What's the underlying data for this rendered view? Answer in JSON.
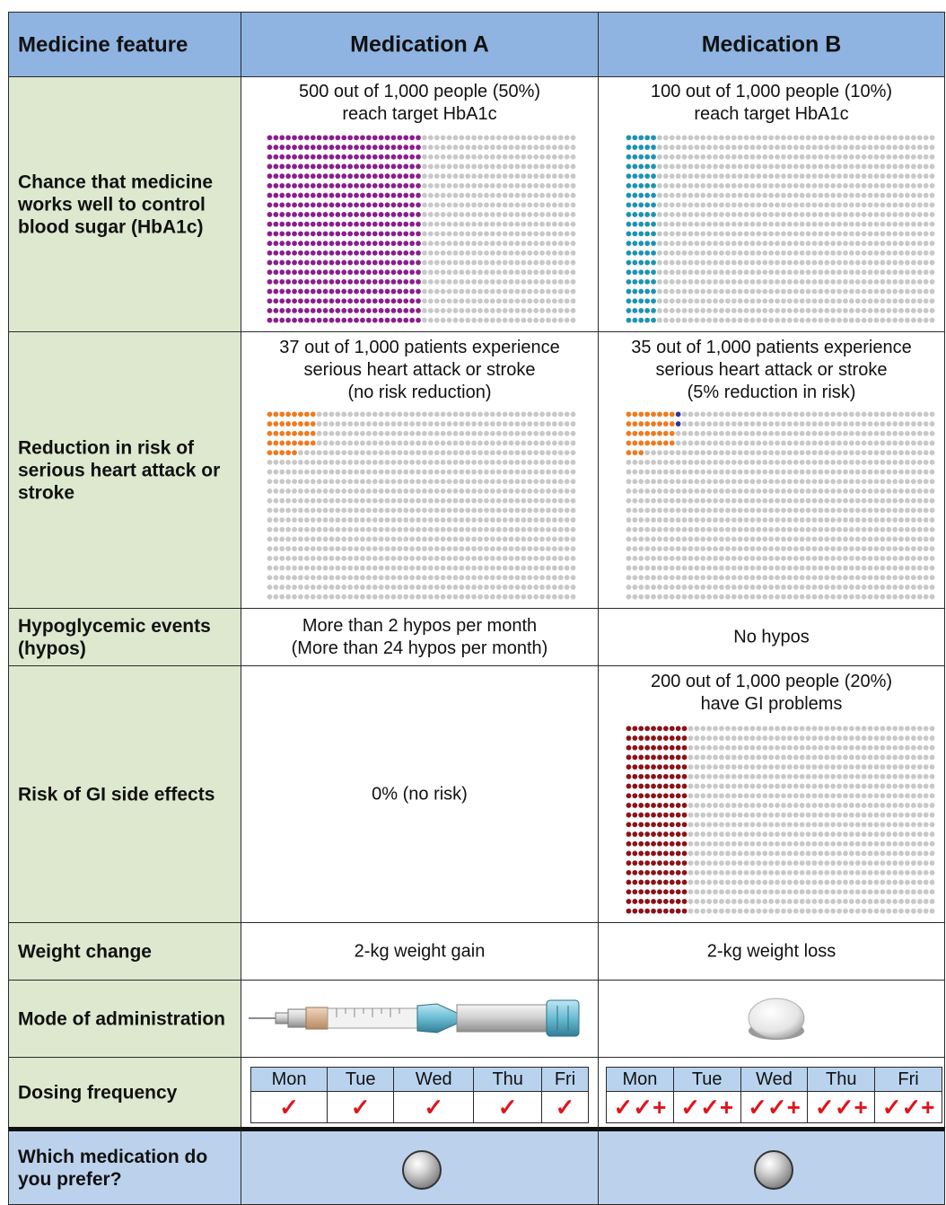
{
  "header": {
    "feature": "Medicine feature",
    "med_a": "Medication A",
    "med_b": "Medication B"
  },
  "rows": {
    "hba1c": {
      "label": "Chance that medicine works well to control blood sugar (HbA1c)",
      "a_caption": "500 out of 1,000 people (50%)\nreach target HbA1c",
      "b_caption": "100 out of 1,000 people (10%)\nreach target HbA1c"
    },
    "heart": {
      "label": "Reduction in risk of serious heart attack or stroke",
      "a_caption": "37 out of 1,000 patients experience\nserious heart attack or stroke\n(no risk reduction)",
      "b_caption": "35 out of 1,000 patients experience\nserious heart attack or stroke\n(5% reduction in risk)"
    },
    "hypo": {
      "label": "Hypoglycemic events (hypos)",
      "a_text": "More than 2 hypos per month\n(More than 24 hypos per month)",
      "b_text": "No hypos"
    },
    "gi": {
      "label": "Risk of GI side effects",
      "a_text": "0% (no risk)",
      "b_caption": "200 out of 1,000 people (20%)\nhave GI problems"
    },
    "weight": {
      "label": "Weight change",
      "a_text": "2-kg weight gain",
      "b_text": "2-kg weight loss"
    },
    "mode": {
      "label": "Mode of administration",
      "a_icon": "insulin-pen-icon",
      "b_icon": "pill-tablet-icon"
    },
    "dosing": {
      "label": "Dosing frequency",
      "days": [
        "Mon",
        "Tue",
        "Wed",
        "Thu",
        "Fri"
      ],
      "a_mark": "✓",
      "b_mark": "✓✓+"
    },
    "prefer": {
      "label": "Which medication do you prefer?"
    }
  },
  "chart_data": [
    {
      "type": "icon_array",
      "panel": "hba1c-a",
      "total": 1000,
      "highlighted": 500,
      "color": "#8a1f8e",
      "base_color": "#c8c8c8"
    },
    {
      "type": "icon_array",
      "panel": "hba1c-b",
      "total": 1000,
      "highlighted": 100,
      "color": "#1e93b4",
      "base_color": "#c8c8c8"
    },
    {
      "type": "icon_array",
      "panel": "heart-a",
      "total": 1000,
      "highlighted": 37,
      "color": "#ef7a1f",
      "base_color": "#c8c8c8"
    },
    {
      "type": "icon_array",
      "panel": "heart-b",
      "total": 1000,
      "highlighted": 35,
      "color": "#ef7a1f",
      "extra": 2,
      "extra_color": "#333399",
      "base_color": "#c8c8c8"
    },
    {
      "type": "icon_array",
      "panel": "gi-b",
      "total": 1000,
      "highlighted": 200,
      "color": "#8b1319",
      "base_color": "#c8c8c8"
    }
  ]
}
